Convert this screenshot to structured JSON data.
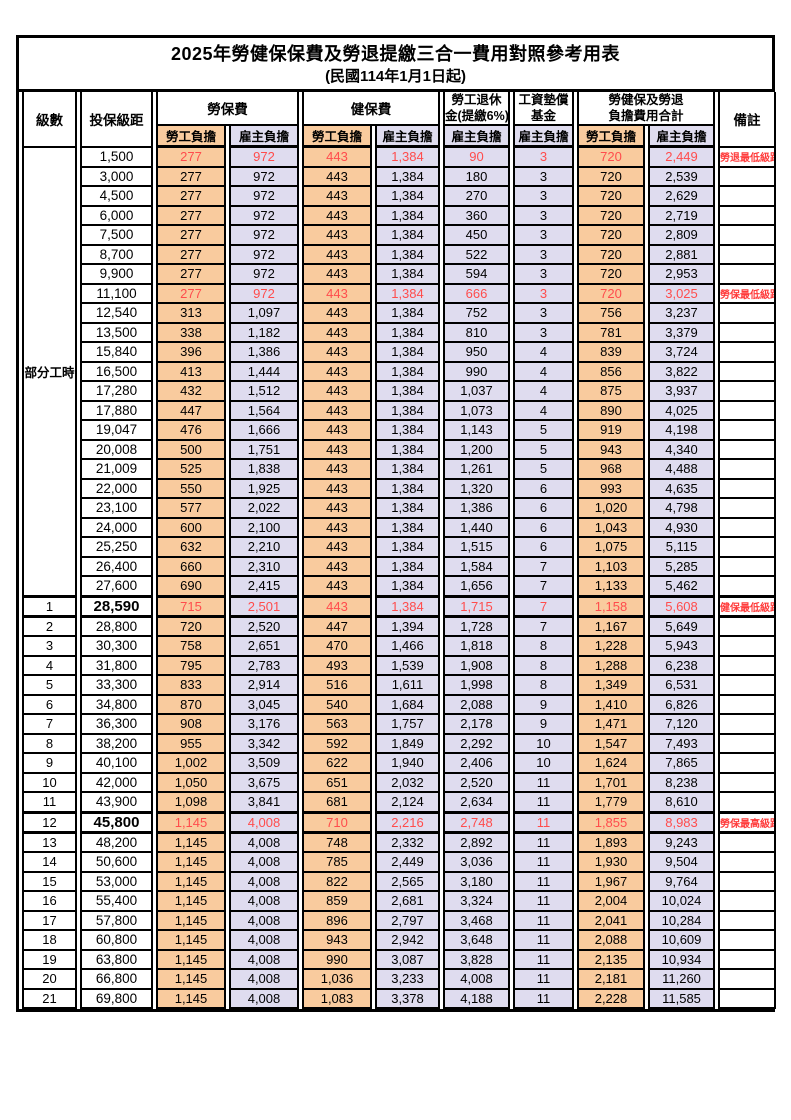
{
  "page": {
    "title": "2025年勞健保保費及勞退提繳三合一費用對照參考用表",
    "subtitle": "(民國114年1月1日起)"
  },
  "colors": {
    "employee_cell_bg": "#F9CB9E",
    "employer_cell_bg": "#DFDCEF",
    "highlight_value_red": "#FF4C4C",
    "remark_red": "#FF3B3B",
    "border_black": "#000000"
  },
  "table": {
    "headers": {
      "level": "級數",
      "salary": "投保級距",
      "labor_insurance": "勞保費",
      "health_insurance": "健保費",
      "pension_line1": "勞工退休",
      "pension_line2": "金(提繳6%)",
      "arrears_line1": "工資墊償",
      "arrears_line2": "基金",
      "total_line1": "勞健保及勞退",
      "total_line2": "負擔費用合計",
      "remark": "備註",
      "employee": "勞工負擔",
      "employer": "雇主負擔"
    },
    "part_time_label": "部分工時",
    "rows": [
      {
        "group": "pt",
        "level": "",
        "salary": "1,500",
        "values": [
          "277",
          "972",
          "443",
          "1,384",
          "90",
          "3",
          "720",
          "2,449"
        ],
        "remark": "勞退最低級距",
        "red": true
      },
      {
        "group": "pt",
        "level": "",
        "salary": "3,000",
        "values": [
          "277",
          "972",
          "443",
          "1,384",
          "180",
          "3",
          "720",
          "2,539"
        ],
        "remark": ""
      },
      {
        "group": "pt",
        "level": "",
        "salary": "4,500",
        "values": [
          "277",
          "972",
          "443",
          "1,384",
          "270",
          "3",
          "720",
          "2,629"
        ],
        "remark": ""
      },
      {
        "group": "pt",
        "level": "",
        "salary": "6,000",
        "values": [
          "277",
          "972",
          "443",
          "1,384",
          "360",
          "3",
          "720",
          "2,719"
        ],
        "remark": ""
      },
      {
        "group": "pt",
        "level": "",
        "salary": "7,500",
        "values": [
          "277",
          "972",
          "443",
          "1,384",
          "450",
          "3",
          "720",
          "2,809"
        ],
        "remark": ""
      },
      {
        "group": "pt",
        "level": "",
        "salary": "8,700",
        "values": [
          "277",
          "972",
          "443",
          "1,384",
          "522",
          "3",
          "720",
          "2,881"
        ],
        "remark": ""
      },
      {
        "group": "pt",
        "level": "",
        "salary": "9,900",
        "values": [
          "277",
          "972",
          "443",
          "1,384",
          "594",
          "3",
          "720",
          "2,953"
        ],
        "remark": ""
      },
      {
        "group": "pt",
        "level": "",
        "salary": "11,100",
        "values": [
          "277",
          "972",
          "443",
          "1,384",
          "666",
          "3",
          "720",
          "3,025"
        ],
        "remark": "勞保最低級距",
        "red": true
      },
      {
        "group": "pt",
        "level": "",
        "salary": "12,540",
        "values": [
          "313",
          "1,097",
          "443",
          "1,384",
          "752",
          "3",
          "756",
          "3,237"
        ],
        "remark": ""
      },
      {
        "group": "pt",
        "level": "",
        "salary": "13,500",
        "values": [
          "338",
          "1,182",
          "443",
          "1,384",
          "810",
          "3",
          "781",
          "3,379"
        ],
        "remark": ""
      },
      {
        "group": "pt",
        "level": "",
        "salary": "15,840",
        "values": [
          "396",
          "1,386",
          "443",
          "1,384",
          "950",
          "4",
          "839",
          "3,724"
        ],
        "remark": ""
      },
      {
        "group": "pt",
        "level": "",
        "salary": "16,500",
        "values": [
          "413",
          "1,444",
          "443",
          "1,384",
          "990",
          "4",
          "856",
          "3,822"
        ],
        "remark": ""
      },
      {
        "group": "pt",
        "level": "",
        "salary": "17,280",
        "values": [
          "432",
          "1,512",
          "443",
          "1,384",
          "1,037",
          "4",
          "875",
          "3,937"
        ],
        "remark": ""
      },
      {
        "group": "pt",
        "level": "",
        "salary": "17,880",
        "values": [
          "447",
          "1,564",
          "443",
          "1,384",
          "1,073",
          "4",
          "890",
          "4,025"
        ],
        "remark": ""
      },
      {
        "group": "pt",
        "level": "",
        "salary": "19,047",
        "values": [
          "476",
          "1,666",
          "443",
          "1,384",
          "1,143",
          "5",
          "919",
          "4,198"
        ],
        "remark": ""
      },
      {
        "group": "pt",
        "level": "",
        "salary": "20,008",
        "values": [
          "500",
          "1,751",
          "443",
          "1,384",
          "1,200",
          "5",
          "943",
          "4,340"
        ],
        "remark": ""
      },
      {
        "group": "pt",
        "level": "",
        "salary": "21,009",
        "values": [
          "525",
          "1,838",
          "443",
          "1,384",
          "1,261",
          "5",
          "968",
          "4,488"
        ],
        "remark": ""
      },
      {
        "group": "pt",
        "level": "",
        "salary": "22,000",
        "values": [
          "550",
          "1,925",
          "443",
          "1,384",
          "1,320",
          "6",
          "993",
          "4,635"
        ],
        "remark": ""
      },
      {
        "group": "pt",
        "level": "",
        "salary": "23,100",
        "values": [
          "577",
          "2,022",
          "443",
          "1,384",
          "1,386",
          "6",
          "1,020",
          "4,798"
        ],
        "remark": ""
      },
      {
        "group": "pt",
        "level": "",
        "salary": "24,000",
        "values": [
          "600",
          "2,100",
          "443",
          "1,384",
          "1,440",
          "6",
          "1,043",
          "4,930"
        ],
        "remark": ""
      },
      {
        "group": "pt",
        "level": "",
        "salary": "25,250",
        "values": [
          "632",
          "2,210",
          "443",
          "1,384",
          "1,515",
          "6",
          "1,075",
          "5,115"
        ],
        "remark": ""
      },
      {
        "group": "pt",
        "level": "",
        "salary": "26,400",
        "values": [
          "660",
          "2,310",
          "443",
          "1,384",
          "1,584",
          "7",
          "1,103",
          "5,285"
        ],
        "remark": ""
      },
      {
        "group": "pt",
        "level": "",
        "salary": "27,600",
        "values": [
          "690",
          "2,415",
          "443",
          "1,384",
          "1,656",
          "7",
          "1,133",
          "5,462"
        ],
        "remark": ""
      },
      {
        "group": "lv",
        "level": "1",
        "salary": "28,590",
        "values": [
          "715",
          "2,501",
          "443",
          "1,384",
          "1,715",
          "7",
          "1,158",
          "5,608"
        ],
        "remark": "健保最低級距",
        "red": true,
        "thick": true
      },
      {
        "group": "lv",
        "level": "2",
        "salary": "28,800",
        "values": [
          "720",
          "2,520",
          "447",
          "1,394",
          "1,728",
          "7",
          "1,167",
          "5,649"
        ],
        "remark": ""
      },
      {
        "group": "lv",
        "level": "3",
        "salary": "30,300",
        "values": [
          "758",
          "2,651",
          "470",
          "1,466",
          "1,818",
          "8",
          "1,228",
          "5,943"
        ],
        "remark": ""
      },
      {
        "group": "lv",
        "level": "4",
        "salary": "31,800",
        "values": [
          "795",
          "2,783",
          "493",
          "1,539",
          "1,908",
          "8",
          "1,288",
          "6,238"
        ],
        "remark": ""
      },
      {
        "group": "lv",
        "level": "5",
        "salary": "33,300",
        "values": [
          "833",
          "2,914",
          "516",
          "1,611",
          "1,998",
          "8",
          "1,349",
          "6,531"
        ],
        "remark": ""
      },
      {
        "group": "lv",
        "level": "6",
        "salary": "34,800",
        "values": [
          "870",
          "3,045",
          "540",
          "1,684",
          "2,088",
          "9",
          "1,410",
          "6,826"
        ],
        "remark": ""
      },
      {
        "group": "lv",
        "level": "7",
        "salary": "36,300",
        "values": [
          "908",
          "3,176",
          "563",
          "1,757",
          "2,178",
          "9",
          "1,471",
          "7,120"
        ],
        "remark": ""
      },
      {
        "group": "lv",
        "level": "8",
        "salary": "38,200",
        "values": [
          "955",
          "3,342",
          "592",
          "1,849",
          "2,292",
          "10",
          "1,547",
          "7,493"
        ],
        "remark": ""
      },
      {
        "group": "lv",
        "level": "9",
        "salary": "40,100",
        "values": [
          "1,002",
          "3,509",
          "622",
          "1,940",
          "2,406",
          "10",
          "1,624",
          "7,865"
        ],
        "remark": ""
      },
      {
        "group": "lv",
        "level": "10",
        "salary": "42,000",
        "values": [
          "1,050",
          "3,675",
          "651",
          "2,032",
          "2,520",
          "11",
          "1,701",
          "8,238"
        ],
        "remark": ""
      },
      {
        "group": "lv",
        "level": "11",
        "salary": "43,900",
        "values": [
          "1,098",
          "3,841",
          "681",
          "2,124",
          "2,634",
          "11",
          "1,779",
          "8,610"
        ],
        "remark": ""
      },
      {
        "group": "lv",
        "level": "12",
        "salary": "45,800",
        "values": [
          "1,145",
          "4,008",
          "710",
          "2,216",
          "2,748",
          "11",
          "1,855",
          "8,983"
        ],
        "remark": "勞保最高級距",
        "red": true,
        "thick": true
      },
      {
        "group": "lv",
        "level": "13",
        "salary": "48,200",
        "values": [
          "1,145",
          "4,008",
          "748",
          "2,332",
          "2,892",
          "11",
          "1,893",
          "9,243"
        ],
        "remark": ""
      },
      {
        "group": "lv",
        "level": "14",
        "salary": "50,600",
        "values": [
          "1,145",
          "4,008",
          "785",
          "2,449",
          "3,036",
          "11",
          "1,930",
          "9,504"
        ],
        "remark": ""
      },
      {
        "group": "lv",
        "level": "15",
        "salary": "53,000",
        "values": [
          "1,145",
          "4,008",
          "822",
          "2,565",
          "3,180",
          "11",
          "1,967",
          "9,764"
        ],
        "remark": ""
      },
      {
        "group": "lv",
        "level": "16",
        "salary": "55,400",
        "values": [
          "1,145",
          "4,008",
          "859",
          "2,681",
          "3,324",
          "11",
          "2,004",
          "10,024"
        ],
        "remark": ""
      },
      {
        "group": "lv",
        "level": "17",
        "salary": "57,800",
        "values": [
          "1,145",
          "4,008",
          "896",
          "2,797",
          "3,468",
          "11",
          "2,041",
          "10,284"
        ],
        "remark": ""
      },
      {
        "group": "lv",
        "level": "18",
        "salary": "60,800",
        "values": [
          "1,145",
          "4,008",
          "943",
          "2,942",
          "3,648",
          "11",
          "2,088",
          "10,609"
        ],
        "remark": ""
      },
      {
        "group": "lv",
        "level": "19",
        "salary": "63,800",
        "values": [
          "1,145",
          "4,008",
          "990",
          "3,087",
          "3,828",
          "11",
          "2,135",
          "10,934"
        ],
        "remark": ""
      },
      {
        "group": "lv",
        "level": "20",
        "salary": "66,800",
        "values": [
          "1,145",
          "4,008",
          "1,036",
          "3,233",
          "4,008",
          "11",
          "2,181",
          "11,260"
        ],
        "remark": ""
      },
      {
        "group": "lv",
        "level": "21",
        "salary": "69,800",
        "values": [
          "1,145",
          "4,008",
          "1,083",
          "3,378",
          "4,188",
          "11",
          "2,228",
          "11,585"
        ],
        "remark": ""
      }
    ]
  }
}
